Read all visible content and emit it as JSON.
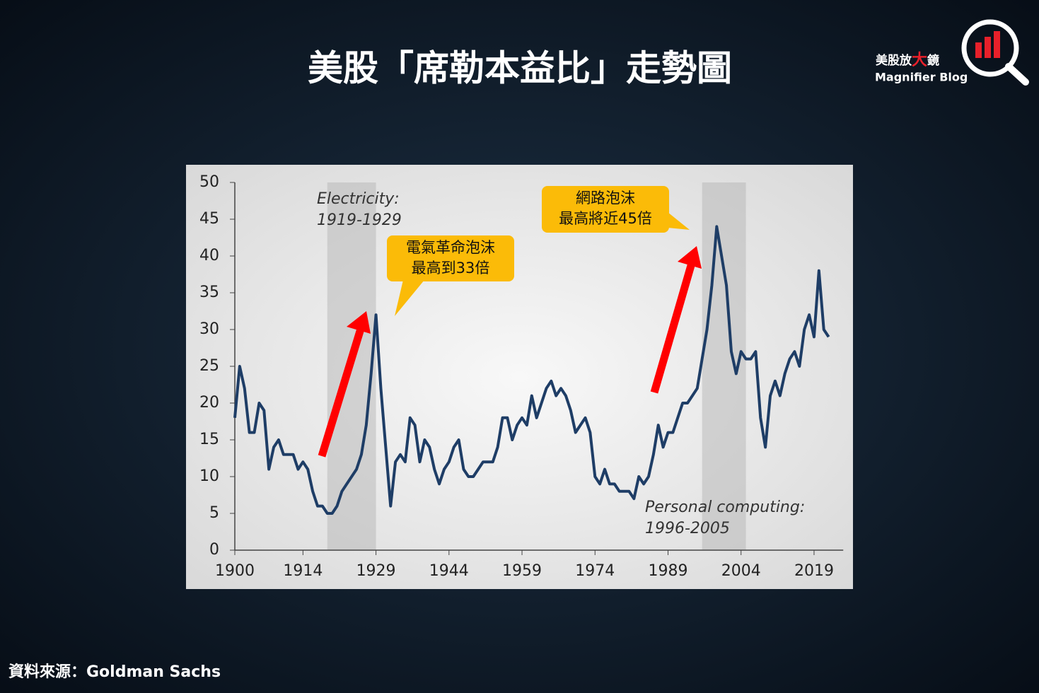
{
  "title": "美股「席勒本益比」走勢圖",
  "logo": {
    "text_before": "美股放",
    "highlight": "大",
    "text_after": "鏡",
    "subtitle": "Magnifier Blog"
  },
  "source": "資料來源：Goldman Sachs",
  "chart_data": {
    "type": "line",
    "color": "#1e3d66",
    "x": [
      1900,
      1901,
      1902,
      1903,
      1904,
      1905,
      1906,
      1907,
      1908,
      1909,
      1910,
      1911,
      1912,
      1913,
      1914,
      1915,
      1916,
      1917,
      1918,
      1919,
      1920,
      1921,
      1922,
      1923,
      1924,
      1925,
      1926,
      1927,
      1928,
      1929,
      1930,
      1931,
      1932,
      1933,
      1934,
      1935,
      1936,
      1937,
      1938,
      1939,
      1940,
      1941,
      1942,
      1943,
      1944,
      1945,
      1946,
      1947,
      1948,
      1949,
      1950,
      1951,
      1952,
      1953,
      1954,
      1955,
      1956,
      1957,
      1958,
      1959,
      1960,
      1961,
      1962,
      1963,
      1964,
      1965,
      1966,
      1967,
      1968,
      1969,
      1970,
      1971,
      1972,
      1973,
      1974,
      1975,
      1976,
      1977,
      1978,
      1979,
      1980,
      1981,
      1982,
      1983,
      1984,
      1985,
      1986,
      1987,
      1988,
      1989,
      1990,
      1991,
      1992,
      1993,
      1994,
      1995,
      1996,
      1997,
      1998,
      1999,
      2000,
      2001,
      2002,
      2003,
      2004,
      2005,
      2006,
      2007,
      2008,
      2009,
      2010,
      2011,
      2012,
      2013,
      2014,
      2015,
      2016,
      2017,
      2018,
      2019,
      2020,
      2021,
      2022
    ],
    "values": [
      18,
      25,
      22,
      16,
      16,
      20,
      19,
      11,
      14,
      15,
      13,
      13,
      13,
      11,
      12,
      11,
      8,
      6,
      6,
      5,
      5,
      6,
      8,
      9,
      10,
      11,
      13,
      17,
      24,
      32,
      22,
      14,
      6,
      12,
      13,
      12,
      18,
      17,
      12,
      15,
      14,
      11,
      9,
      11,
      12,
      14,
      15,
      11,
      10,
      10,
      11,
      12,
      12,
      12,
      14,
      18,
      18,
      15,
      17,
      18,
      17,
      21,
      18,
      20,
      22,
      23,
      21,
      22,
      21,
      19,
      16,
      17,
      18,
      16,
      10,
      9,
      11,
      9,
      9,
      8,
      8,
      8,
      7,
      10,
      9,
      10,
      13,
      17,
      14,
      16,
      16,
      18,
      20,
      20,
      21,
      22,
      26,
      30,
      36,
      44,
      40,
      36,
      27,
      24,
      27,
      26,
      26,
      27,
      18,
      14,
      21,
      23,
      21,
      24,
      26,
      27,
      25,
      30,
      32,
      29,
      38,
      30,
      29
    ],
    "xlim": [
      1900,
      2025
    ],
    "ylim": [
      0,
      50
    ],
    "xticks": [
      1900,
      1914,
      1929,
      1944,
      1959,
      1974,
      1989,
      2004,
      2019
    ],
    "yticks": [
      0,
      5,
      10,
      15,
      20,
      25,
      30,
      35,
      40,
      45,
      50
    ],
    "shaded": [
      [
        1919,
        1929
      ],
      [
        1996,
        2005
      ]
    ],
    "annotations": [
      "Electricity:",
      "1919-1929",
      "Personal computing:",
      "1996-2005"
    ],
    "callouts": [
      [
        "電氣革命泡沫",
        "最高到33倍"
      ],
      [
        "網路泡沫",
        "最高將近45倍"
      ]
    ]
  }
}
